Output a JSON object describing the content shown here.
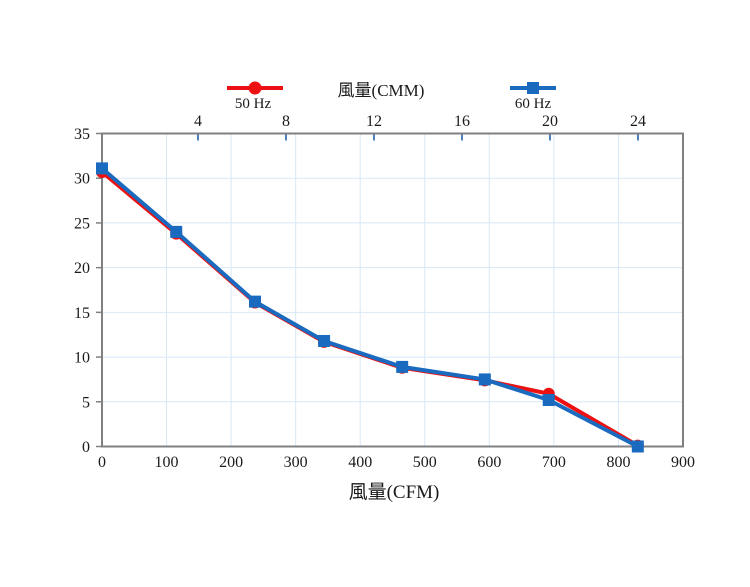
{
  "chart_data": {
    "type": "line",
    "top_axis": {
      "title": "風量(CMM)",
      "ticks": [
        4,
        8,
        12,
        16,
        20,
        24
      ]
    },
    "bottom_axis": {
      "title": "風量(CFM)",
      "min": 0,
      "max": 900,
      "ticks": [
        0,
        100,
        200,
        300,
        400,
        500,
        600,
        700,
        800,
        900
      ]
    },
    "y_axis": {
      "min": 0,
      "max": 35,
      "ticks": [
        0,
        5,
        10,
        15,
        20,
        25,
        30,
        35
      ]
    },
    "grid": true,
    "legend_position": "top",
    "series": [
      {
        "name": "50 Hz",
        "color": "#ee1111",
        "marker": "circle",
        "points": [
          [
            0,
            30.7
          ],
          [
            115,
            23.8
          ],
          [
            237,
            16.1
          ],
          [
            344,
            11.7
          ],
          [
            465,
            8.8
          ],
          [
            593,
            7.4
          ],
          [
            692,
            5.9
          ],
          [
            830,
            0.1
          ]
        ]
      },
      {
        "name": "60 Hz",
        "color": "#1a6bbf",
        "marker": "square",
        "points": [
          [
            0,
            31.1
          ],
          [
            115,
            24.0
          ],
          [
            237,
            16.2
          ],
          [
            344,
            11.8
          ],
          [
            465,
            8.9
          ],
          [
            593,
            7.5
          ],
          [
            692,
            5.2
          ],
          [
            830,
            0.0
          ]
        ]
      }
    ],
    "colors": {
      "grid": "#d8e8f8",
      "frame": "#808080",
      "top_tick": "#4f81bd",
      "text": "#1a1a1a"
    }
  }
}
